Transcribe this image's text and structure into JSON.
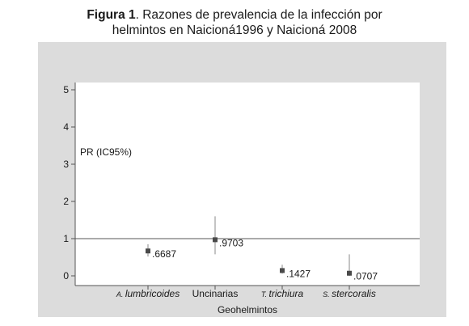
{
  "figure": {
    "label": "Figura 1",
    "title_line1": ". Razones de prevalencia de la infección por",
    "title_line2": "helmintos en Naicioná1996 y Naicioná 2008"
  },
  "chart_data": {
    "type": "scatter",
    "title": "Figura 1. Razones de prevalencia de la infección por helmintos en Naicioná1996 y Naicioná 2008",
    "xlabel": "Geohelmintos",
    "ylabel": "PR (IC95%)",
    "ylim": [
      0,
      5
    ],
    "yticks": [
      0,
      1,
      2,
      3,
      4,
      5
    ],
    "reference_line": 1,
    "grid": false,
    "categories": [
      {
        "prefix": "A.",
        "name": "lumbricoides",
        "italic": true
      },
      {
        "prefix": "",
        "name": "Uncinarias",
        "italic": false
      },
      {
        "prefix": "T.",
        "name": "trichiura",
        "italic": true
      },
      {
        "prefix": "S.",
        "name": "stercoralis",
        "italic": true
      }
    ],
    "values": [
      0.6687,
      0.9703,
      0.1427,
      0.0707
    ],
    "value_labels": [
      ".6687",
      ".9703",
      ".1427",
      ".0707"
    ],
    "ci_lower": [
      0.52,
      0.58,
      0.06,
      0.0
    ],
    "ci_upper": [
      0.85,
      1.6,
      0.3,
      0.58
    ],
    "colors": {
      "outer_background": "#dcdcdc",
      "plot_background": "#ffffff",
      "marker": "#4a4a4a",
      "whisker": "#8a8a8a",
      "axis": "#555555"
    }
  }
}
